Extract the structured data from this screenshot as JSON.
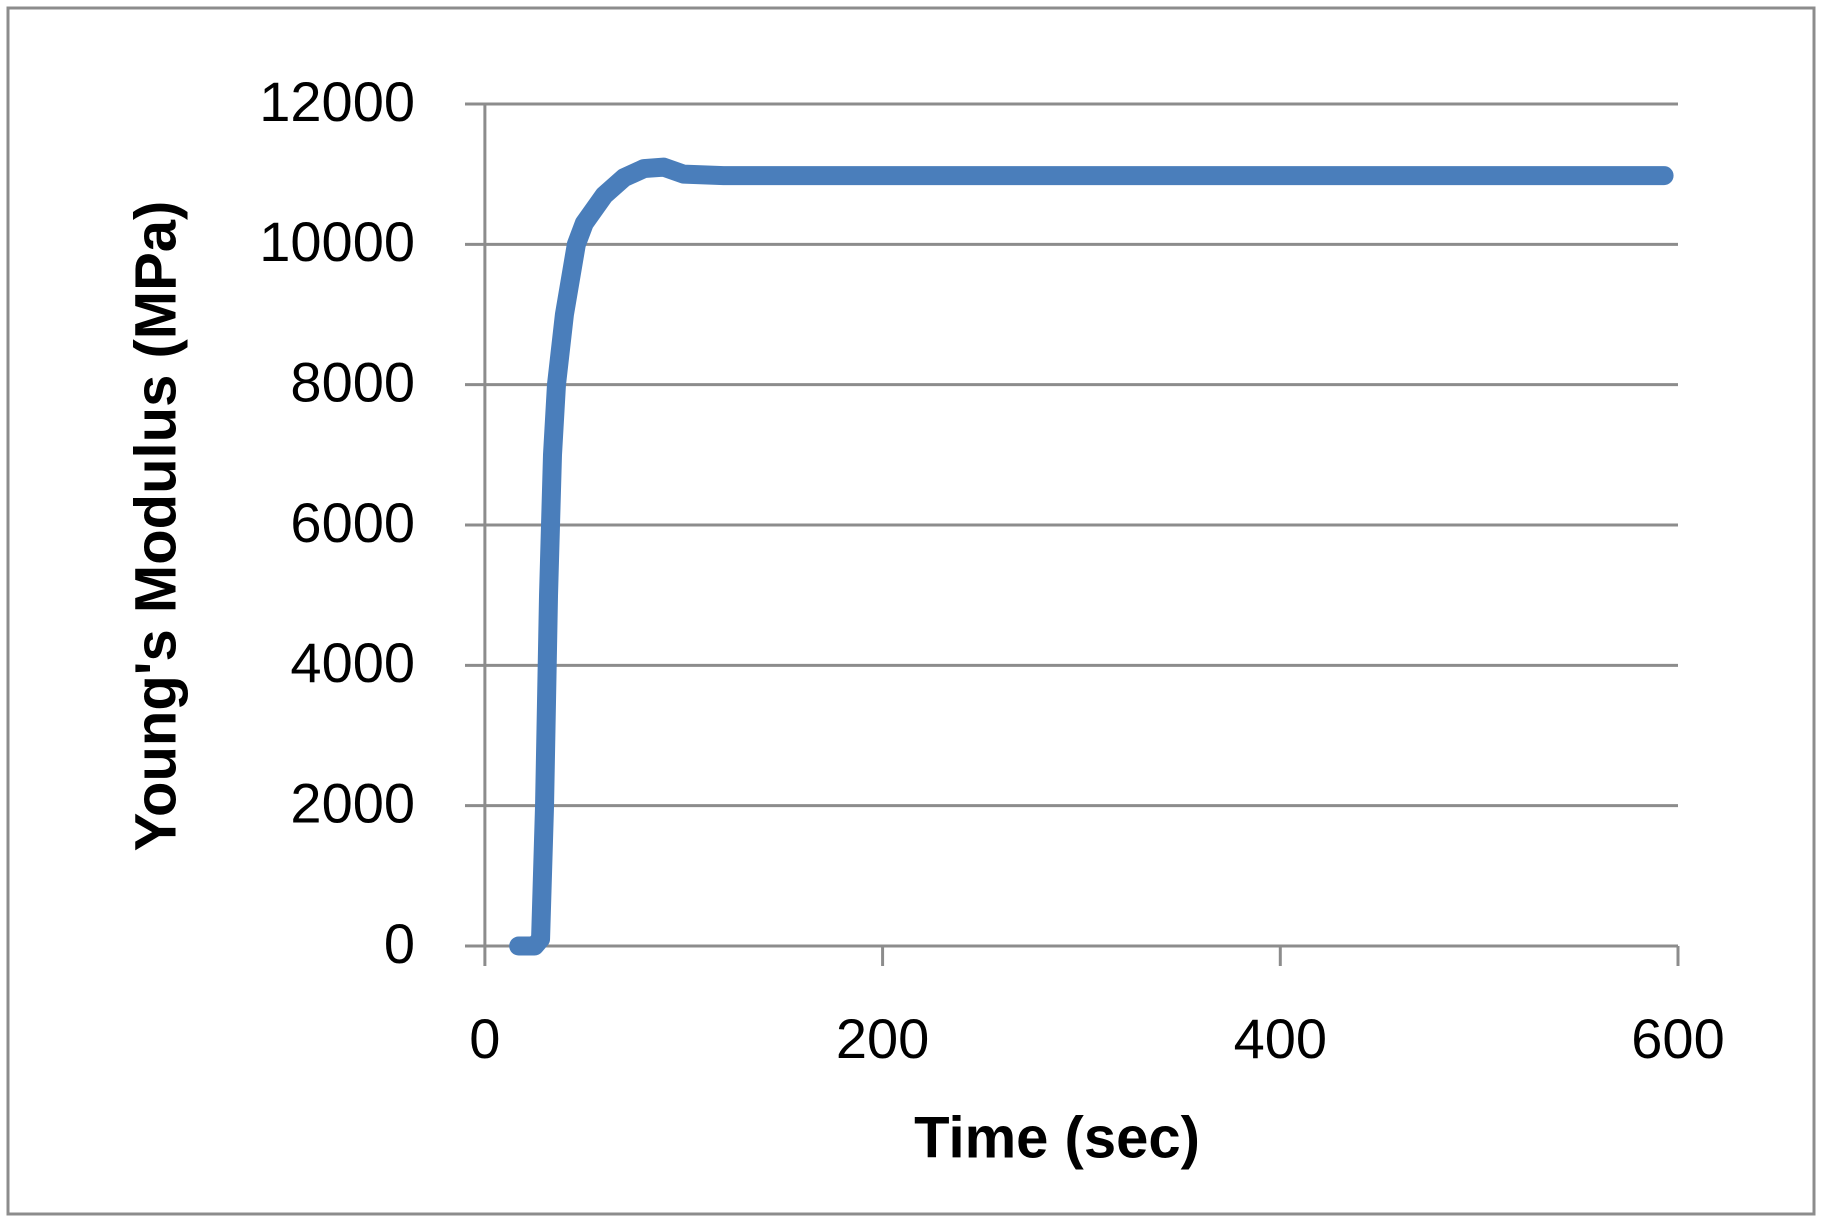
{
  "chart_data": {
    "type": "line",
    "x_label": "Time (sec)",
    "y_label": "Young's Modulus (MPa)",
    "xlim": [
      -10,
      600
    ],
    "xticks": [
      0,
      200,
      400,
      600
    ],
    "ylim": [
      0,
      12000
    ],
    "yticks": [
      0,
      2000,
      4000,
      6000,
      8000,
      10000,
      12000
    ],
    "grid": true,
    "series": [
      {
        "color": "#4a7ebb",
        "x": [
          17,
          25,
          28,
          30,
          32,
          34,
          36,
          40,
          46,
          50,
          60,
          70,
          80,
          90,
          100,
          120,
          200,
          400,
          593
        ],
        "values": [
          0,
          0,
          100,
          2000,
          5000,
          7000,
          8000,
          9000,
          10000,
          10300,
          10700,
          10950,
          11080,
          11100,
          11000,
          10980,
          10980,
          10980,
          10980
        ]
      }
    ]
  }
}
